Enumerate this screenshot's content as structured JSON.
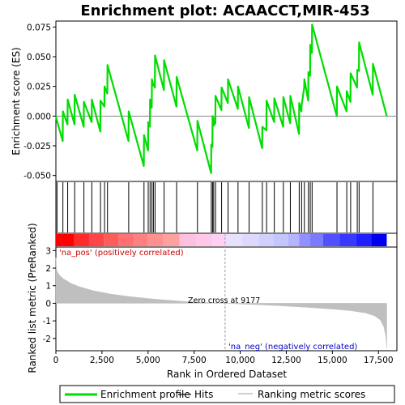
{
  "chart_data": {
    "type": "line",
    "title": "Enrichment plot: ACAACCT,MIR-453",
    "xlabel": "Rank in Ordered Dataset",
    "top_ylabel": "Enrichment score (ES)",
    "bottom_ylabel": "Ranked list metric (PreRanked)",
    "x_range": [
      0,
      18500
    ],
    "es_ylim": [
      -0.055,
      0.08
    ],
    "metric_ylim": [
      -2.7,
      3.2
    ],
    "x_ticks": [
      "0",
      "2,500",
      "5,000",
      "7,500",
      "10,000",
      "12,500",
      "15,000",
      "17,500"
    ],
    "x_tick_values": [
      0,
      2500,
      5000,
      7500,
      10000,
      12500,
      15000,
      17500
    ],
    "es_ticks": [
      "0.075",
      "0.050",
      "0.025",
      "0.000",
      "-0.025",
      "-0.050"
    ],
    "es_tick_values": [
      0.075,
      0.05,
      0.025,
      0.0,
      -0.025,
      -0.05
    ],
    "metric_ticks": [
      "3",
      "2",
      "1",
      "0",
      "-1",
      "-2"
    ],
    "metric_tick_values": [
      3,
      2,
      1,
      0,
      -1,
      -2
    ],
    "zero_cross_label": "Zero cross at 9177",
    "zero_cross": 9177,
    "pos_label": "'na_pos' (positively correlated)",
    "neg_label": "'na_neg' (negatively correlated)",
    "n_genes": 17950,
    "hits": [
      60,
      380,
      640,
      1020,
      1520,
      1950,
      2420,
      2640,
      2800,
      3950,
      4780,
      5010,
      5110,
      5210,
      5290,
      5380,
      5870,
      6550,
      7680,
      8430,
      8500,
      8560,
      8660,
      8990,
      9340,
      9880,
      10480,
      11200,
      11430,
      11850,
      12340,
      12720,
      13200,
      13330,
      13480,
      13700,
      13800,
      13900,
      15250,
      15780,
      15990,
      16350,
      16450,
      17200
    ],
    "es_points": [
      [
        0,
        0.0
      ],
      [
        60,
        -0.004
      ],
      [
        370,
        -0.021
      ],
      [
        380,
        0.004
      ],
      [
        630,
        -0.007
      ],
      [
        640,
        0.014
      ],
      [
        1010,
        -0.007
      ],
      [
        1020,
        0.018
      ],
      [
        1510,
        -0.009
      ],
      [
        1520,
        0.012
      ],
      [
        1940,
        -0.005
      ],
      [
        1950,
        0.014
      ],
      [
        2410,
        -0.013
      ],
      [
        2420,
        0.013
      ],
      [
        2630,
        0.008
      ],
      [
        2640,
        0.025
      ],
      [
        2790,
        0.019
      ],
      [
        2800,
        0.043
      ],
      [
        3940,
        -0.021
      ],
      [
        3950,
        0.004
      ],
      [
        4770,
        -0.042
      ],
      [
        4780,
        -0.016
      ],
      [
        5000,
        -0.029
      ],
      [
        5010,
        -0.005
      ],
      [
        5100,
        -0.009
      ],
      [
        5110,
        0.014
      ],
      [
        5200,
        0.007
      ],
      [
        5210,
        0.031
      ],
      [
        5280,
        0.026
      ],
      [
        5290,
        0.027
      ],
      [
        5370,
        0.024
      ],
      [
        5380,
        0.051
      ],
      [
        5860,
        0.022
      ],
      [
        5870,
        0.047
      ],
      [
        6540,
        0.008
      ],
      [
        6550,
        0.033
      ],
      [
        7670,
        -0.029
      ],
      [
        7680,
        -0.004
      ],
      [
        8420,
        -0.048
      ],
      [
        8430,
        -0.024
      ],
      [
        8490,
        -0.026
      ],
      [
        8500,
        0.0
      ],
      [
        8550,
        -0.002
      ],
      [
        8560,
        -0.008
      ],
      [
        8650,
        -0.006
      ],
      [
        8660,
        0.017
      ],
      [
        8980,
        0.005
      ],
      [
        8990,
        0.024
      ],
      [
        9330,
        0.011
      ],
      [
        9340,
        0.031
      ],
      [
        9870,
        0.006
      ],
      [
        9880,
        0.025
      ],
      [
        10470,
        -0.01
      ],
      [
        10480,
        0.016
      ],
      [
        11190,
        -0.027
      ],
      [
        11200,
        -0.009
      ],
      [
        11420,
        -0.012
      ],
      [
        11430,
        0.013
      ],
      [
        11840,
        -0.005
      ],
      [
        11850,
        0.015
      ],
      [
        12330,
        -0.009
      ],
      [
        12340,
        0.016
      ],
      [
        12710,
        -0.006
      ],
      [
        12720,
        0.017
      ],
      [
        13190,
        -0.015
      ],
      [
        13200,
        0.011
      ],
      [
        13320,
        0.004
      ],
      [
        13330,
        0.009
      ],
      [
        13470,
        0.024
      ],
      [
        13480,
        0.031
      ],
      [
        13690,
        0.013
      ],
      [
        13700,
        0.037
      ],
      [
        13790,
        0.034
      ],
      [
        13800,
        0.06
      ],
      [
        13890,
        0.053
      ],
      [
        13900,
        0.077
      ],
      [
        15240,
        0.0
      ],
      [
        15250,
        0.025
      ],
      [
        15770,
        0.004
      ],
      [
        15780,
        0.021
      ],
      [
        15980,
        0.012
      ],
      [
        15990,
        0.036
      ],
      [
        16340,
        0.024
      ],
      [
        16350,
        0.039
      ],
      [
        16440,
        0.038
      ],
      [
        16450,
        0.062
      ],
      [
        17190,
        0.018
      ],
      [
        17200,
        0.044
      ],
      [
        17950,
        0.0
      ]
    ],
    "metric_points": [
      [
        0,
        2.6
      ],
      [
        40,
        1.9
      ],
      [
        150,
        1.65
      ],
      [
        400,
        1.4
      ],
      [
        800,
        1.15
      ],
      [
        1200,
        0.97
      ],
      [
        2000,
        0.72
      ],
      [
        3000,
        0.52
      ],
      [
        4000,
        0.38
      ],
      [
        5000,
        0.27
      ],
      [
        6000,
        0.18
      ],
      [
        7000,
        0.1
      ],
      [
        8000,
        0.05
      ],
      [
        9177,
        0.0
      ],
      [
        10500,
        -0.06
      ],
      [
        12000,
        -0.13
      ],
      [
        13500,
        -0.22
      ],
      [
        15000,
        -0.33
      ],
      [
        16000,
        -0.42
      ],
      [
        16800,
        -0.55
      ],
      [
        17300,
        -0.72
      ],
      [
        17600,
        -0.95
      ],
      [
        17800,
        -1.35
      ],
      [
        17900,
        -1.9
      ],
      [
        17950,
        -2.55
      ]
    ],
    "rank_blocks": [
      {
        "from": 0,
        "to": 1000,
        "color": "#ff0000"
      },
      {
        "from": 1000,
        "to": 1800,
        "color": "#ff2a2a"
      },
      {
        "from": 1800,
        "to": 2600,
        "color": "#ff4545"
      },
      {
        "from": 2600,
        "to": 3400,
        "color": "#ff5c5c"
      },
      {
        "from": 3400,
        "to": 4200,
        "color": "#ff7070"
      },
      {
        "from": 4200,
        "to": 5000,
        "color": "#ff8080"
      },
      {
        "from": 5000,
        "to": 5800,
        "color": "#ff9090"
      },
      {
        "from": 5800,
        "to": 6700,
        "color": "#ffa0a0"
      },
      {
        "from": 6700,
        "to": 7600,
        "color": "#ffc0e0"
      },
      {
        "from": 7600,
        "to": 8500,
        "color": "#ffc8e8"
      },
      {
        "from": 8500,
        "to": 9177,
        "color": "#ffd0f0"
      },
      {
        "from": 9177,
        "to": 10100,
        "color": "#e8e0ff"
      },
      {
        "from": 10100,
        "to": 11000,
        "color": "#dcd8ff"
      },
      {
        "from": 11000,
        "to": 11800,
        "color": "#d0d0ff"
      },
      {
        "from": 11800,
        "to": 12600,
        "color": "#c4c4ff"
      },
      {
        "from": 12600,
        "to": 13200,
        "color": "#b4b4ff"
      },
      {
        "from": 13200,
        "to": 13800,
        "color": "#9090ff"
      },
      {
        "from": 13800,
        "to": 14500,
        "color": "#7a7aff"
      },
      {
        "from": 14500,
        "to": 15400,
        "color": "#5050ff"
      },
      {
        "from": 15400,
        "to": 16300,
        "color": "#3838ff"
      },
      {
        "from": 16300,
        "to": 17100,
        "color": "#2020ff"
      },
      {
        "from": 17100,
        "to": 17950,
        "color": "#0000ee"
      }
    ],
    "es_color": "#00dd00",
    "hit_color": "#000000",
    "metric_color": "#bfbfbf",
    "zero_line_color": "#9999aa",
    "legend": [
      {
        "label": "Enrichment profile",
        "color": "#00dd00",
        "kind": "es"
      },
      {
        "label": "Hits",
        "color": "#000000",
        "kind": "hit"
      },
      {
        "label": "Ranking metric scores",
        "color": "#bfbfbf",
        "kind": "metric"
      }
    ]
  }
}
